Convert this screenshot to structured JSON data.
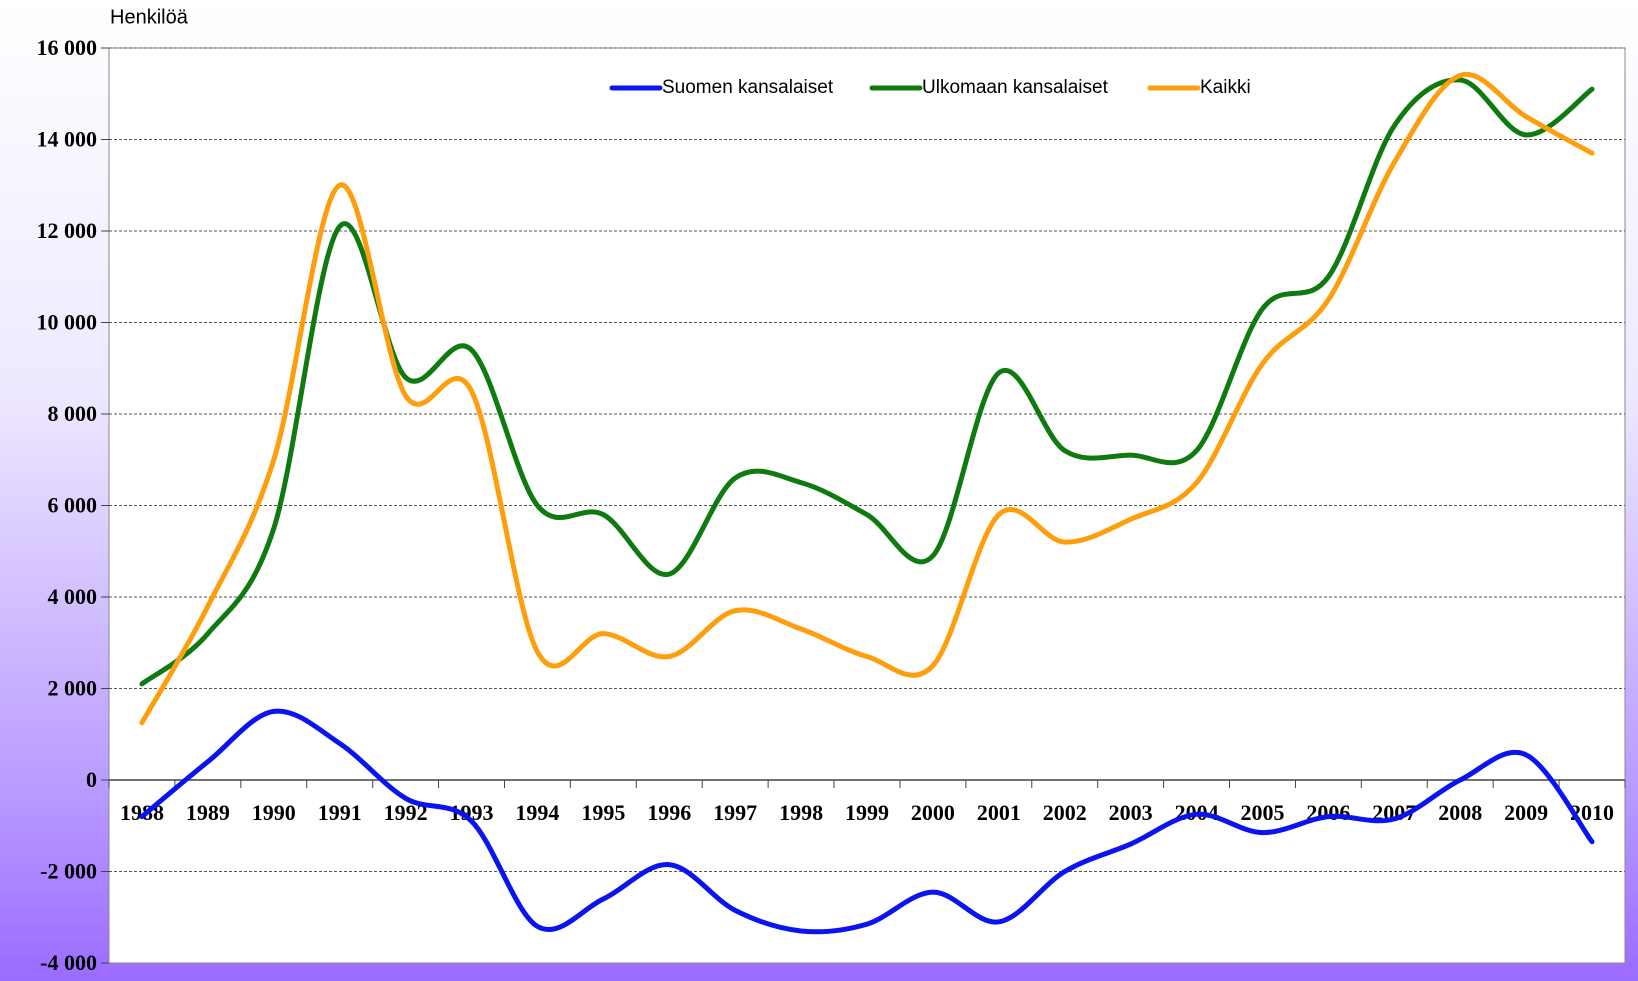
{
  "chart_data": {
    "type": "line",
    "y_axis_label": "Henkilöä",
    "categories": [
      "1988",
      "1989",
      "1990",
      "1991",
      "1992",
      "1993",
      "1994",
      "1995",
      "1996",
      "1997",
      "1998",
      "1999",
      "2000",
      "2001",
      "2002",
      "2003",
      "2004",
      "2005",
      "2006",
      "2007",
      "2008",
      "2009",
      "2010"
    ],
    "series": [
      {
        "name": "Suomen kansalaiset",
        "color": "#0a14f0",
        "values": [
          -800,
          400,
          1500,
          800,
          -400,
          -900,
          -3200,
          -2600,
          -1850,
          -2850,
          -3300,
          -3150,
          -2450,
          -3100,
          -2000,
          -1400,
          -750,
          -1150,
          -800,
          -850,
          0,
          550,
          -1350
        ]
      },
      {
        "name": "Ulkomaan kansalaiset",
        "color": "#0f7a0f",
        "values": [
          2100,
          3200,
          5500,
          12100,
          8800,
          9400,
          6000,
          5800,
          4500,
          6600,
          6500,
          5800,
          4900,
          8900,
          7200,
          7100,
          7200,
          10300,
          11000,
          14300,
          15300,
          14100,
          15100
        ]
      },
      {
        "name": "Kaikki",
        "color": "#ff9e0d",
        "values": [
          1250,
          3800,
          7000,
          13000,
          8400,
          8500,
          2800,
          3200,
          2700,
          3700,
          3300,
          2700,
          2500,
          5800,
          5200,
          5700,
          6500,
          9100,
          10500,
          13500,
          15400,
          14500,
          13700
        ]
      }
    ],
    "ylim": [
      -4000,
      16000
    ],
    "yticks": [
      {
        "value": -4000,
        "label": "-4 000"
      },
      {
        "value": -2000,
        "label": "-2 000"
      },
      0,
      {
        "value": 2000,
        "label": "2 000"
      },
      {
        "value": 4000,
        "label": "4 000"
      },
      {
        "value": 6000,
        "label": "6 000"
      },
      {
        "value": 8000,
        "label": "8 000"
      },
      {
        "value": 10000,
        "label": "10 000"
      },
      {
        "value": 12000,
        "label": "12 000"
      },
      {
        "value": 14000,
        "label": "14 000"
      },
      {
        "value": 16000,
        "label": "16 000"
      }
    ],
    "grid": true,
    "legend": "top"
  }
}
